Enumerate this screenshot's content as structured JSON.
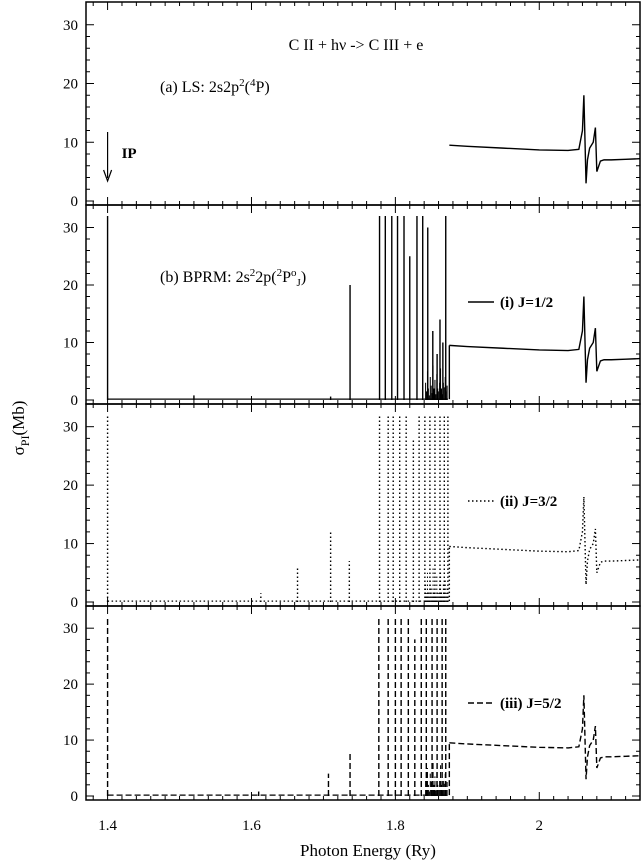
{
  "chart_data": {
    "type": "line",
    "title": "C II + hν -> C III + e",
    "xlabel": "Photon Energy (Ry)",
    "ylabel": "σPI(Mb)",
    "xlim": [
      1.37,
      2.14
    ],
    "xticks": [
      1.4,
      1.6,
      1.8,
      2
    ],
    "xtick_labels": [
      "1.4",
      "1.6",
      "1.8",
      "2"
    ],
    "ylim": [
      0,
      32
    ],
    "yticks": [
      0,
      10,
      20,
      30
    ],
    "ytick_labels": [
      "0",
      "10",
      "20",
      "30"
    ],
    "annotation": {
      "text": "IP",
      "x": 1.4
    },
    "background": {
      "x": [
        1.875,
        1.9,
        1.95,
        2.0,
        2.04,
        2.055
      ],
      "y": [
        9.5,
        9.3,
        9.0,
        8.7,
        8.6,
        8.8
      ]
    },
    "resonance": {
      "x": [
        2.055,
        2.06,
        2.062,
        2.065,
        2.067,
        2.07,
        2.075,
        2.078,
        2.08,
        2.085,
        2.09,
        2.1,
        2.12,
        2.14
      ],
      "y": [
        8.8,
        12.0,
        18.0,
        3.0,
        7.0,
        9.0,
        10.0,
        12.5,
        5.0,
        6.8,
        7.0,
        7.0,
        7.1,
        7.2
      ]
    },
    "panels": [
      {
        "label_main": "(a) LS: 2s2p",
        "label_sup": "2",
        "label_tail_open": "(",
        "label_sup2": "4",
        "label_tail_close": "P)",
        "series_name": "",
        "line_style": "solid",
        "spikes": []
      },
      {
        "label_main": "(b) BPRM: 2s",
        "label_sup": "2",
        "label_tail_open": "2p(",
        "label_sup2": "2",
        "label_tail_close": "P",
        "label_sup3": "o",
        "label_sub": "J",
        "label_end": ")",
        "series_name": "(i) J=1/2",
        "line_style": "solid",
        "spikes": [
          {
            "x": 1.4,
            "y": 32
          },
          {
            "x": 1.52,
            "y": 0.8
          },
          {
            "x": 1.71,
            "y": 0.6
          },
          {
            "x": 1.737,
            "y": 20
          },
          {
            "x": 1.778,
            "y": 32
          },
          {
            "x": 1.786,
            "y": 32
          },
          {
            "x": 1.795,
            "y": 32
          },
          {
            "x": 1.803,
            "y": 32
          },
          {
            "x": 1.812,
            "y": 32
          },
          {
            "x": 1.82,
            "y": 25
          },
          {
            "x": 1.83,
            "y": 32
          },
          {
            "x": 1.838,
            "y": 32
          },
          {
            "x": 1.845,
            "y": 30
          },
          {
            "x": 1.852,
            "y": 12
          },
          {
            "x": 1.858,
            "y": 8
          },
          {
            "x": 1.862,
            "y": 14
          },
          {
            "x": 1.866,
            "y": 10
          },
          {
            "x": 1.87,
            "y": 32
          }
        ]
      },
      {
        "label_main": "",
        "series_name": "(ii) J=3/2",
        "line_style": "dotted",
        "spikes": [
          {
            "x": 1.4,
            "y": 32
          },
          {
            "x": 1.613,
            "y": 1.5
          },
          {
            "x": 1.664,
            "y": 6.0
          },
          {
            "x": 1.71,
            "y": 12
          },
          {
            "x": 1.736,
            "y": 7.0
          },
          {
            "x": 1.778,
            "y": 32
          },
          {
            "x": 1.79,
            "y": 32
          },
          {
            "x": 1.797,
            "y": 32
          },
          {
            "x": 1.806,
            "y": 32
          },
          {
            "x": 1.815,
            "y": 32
          },
          {
            "x": 1.825,
            "y": 28
          },
          {
            "x": 1.833,
            "y": 32
          },
          {
            "x": 1.841,
            "y": 32
          },
          {
            "x": 1.848,
            "y": 32
          },
          {
            "x": 1.855,
            "y": 32
          },
          {
            "x": 1.862,
            "y": 32
          },
          {
            "x": 1.868,
            "y": 32
          },
          {
            "x": 1.873,
            "y": 32
          }
        ]
      },
      {
        "label_main": "",
        "series_name": "(iii) J=5/2",
        "line_style": "dashed",
        "spikes": [
          {
            "x": 1.4,
            "y": 32
          },
          {
            "x": 1.61,
            "y": 0.8
          },
          {
            "x": 1.707,
            "y": 4.0
          },
          {
            "x": 1.737,
            "y": 7.5
          },
          {
            "x": 1.777,
            "y": 32
          },
          {
            "x": 1.79,
            "y": 32
          },
          {
            "x": 1.8,
            "y": 32
          },
          {
            "x": 1.808,
            "y": 32
          },
          {
            "x": 1.818,
            "y": 32
          },
          {
            "x": 1.827,
            "y": 28
          },
          {
            "x": 1.836,
            "y": 32
          },
          {
            "x": 1.843,
            "y": 32
          },
          {
            "x": 1.851,
            "y": 32
          },
          {
            "x": 1.858,
            "y": 32
          },
          {
            "x": 1.865,
            "y": 32
          },
          {
            "x": 1.87,
            "y": 32
          }
        ]
      }
    ]
  }
}
